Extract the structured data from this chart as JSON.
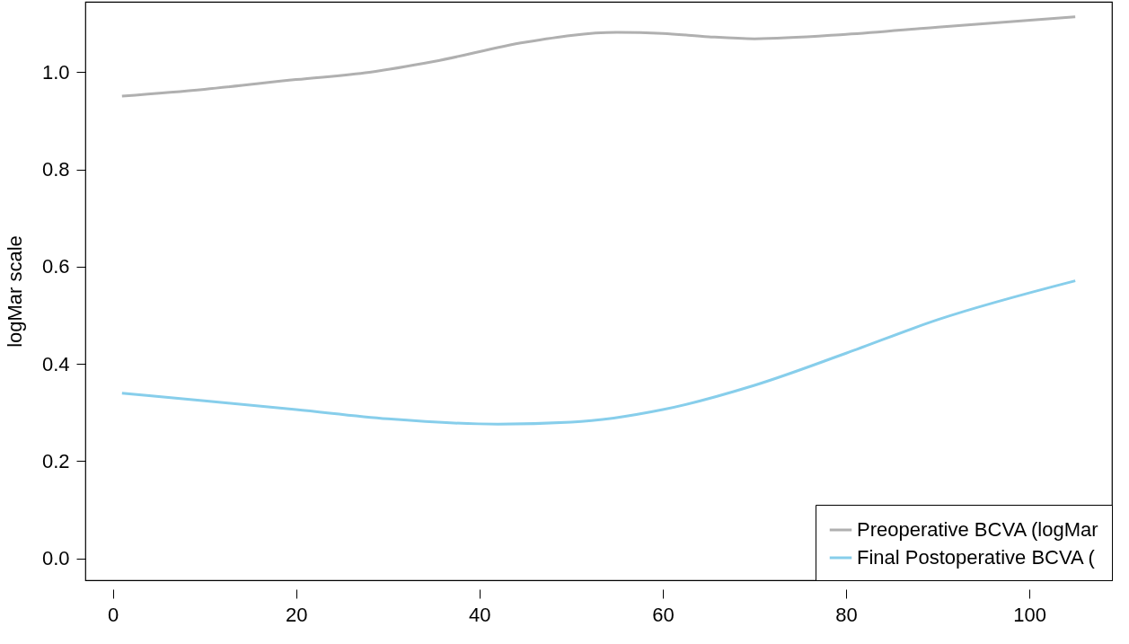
{
  "chart_data": {
    "type": "line",
    "ylabel": "logMar scale",
    "xlim": [
      -3,
      109
    ],
    "ylim": [
      -0.045,
      1.145
    ],
    "xticks": [
      0,
      20,
      40,
      60,
      80,
      100
    ],
    "yticks": [
      {
        "value": 0,
        "label": "0.0"
      },
      0.2,
      0.4,
      0.6,
      0.8,
      {
        "value": 1,
        "label": "1.0"
      }
    ],
    "grid": false,
    "legend": "bottom right",
    "marker": "none",
    "line_style": "solid",
    "series": [
      {
        "name": "Preoperative BCVA (logMar",
        "color": "#b0b0b0",
        "x": [
          1,
          10,
          20,
          28,
          35,
          45,
          55,
          60,
          65,
          70,
          80,
          90,
          105
        ],
        "values": [
          0.951,
          0.965,
          0.985,
          1.0,
          1.022,
          1.062,
          1.082,
          1.08,
          1.073,
          1.069,
          1.078,
          1.093,
          1.114
        ]
      },
      {
        "name": "Final Postoperative BCVA (",
        "color": "#87ceeb",
        "x": [
          1,
          10,
          20,
          30,
          42,
          50,
          60,
          70,
          80,
          90,
          105
        ],
        "values": [
          0.34,
          0.324,
          0.306,
          0.287,
          0.276,
          0.28,
          0.306,
          0.356,
          0.422,
          0.491,
          0.571
        ]
      }
    ]
  }
}
